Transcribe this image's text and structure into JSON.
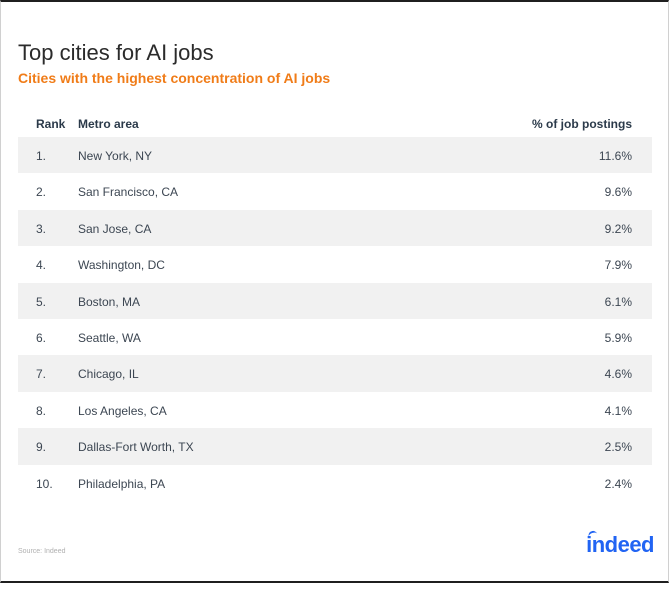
{
  "chart_data": {
    "type": "table",
    "title": "Top cities for AI jobs",
    "subtitle": "Cities with the highest concentration of AI jobs",
    "columns": [
      "Rank",
      "Metro area",
      "% of job postings"
    ],
    "rows": [
      {
        "rank": "1.",
        "metro": "New York, NY",
        "pct": "11.6%"
      },
      {
        "rank": "2.",
        "metro": "San Francisco, CA",
        "pct": "9.6%"
      },
      {
        "rank": "3.",
        "metro": "San Jose, CA",
        "pct": "9.2%"
      },
      {
        "rank": "4.",
        "metro": "Washington, DC",
        "pct": "7.9%"
      },
      {
        "rank": "5.",
        "metro": "Boston, MA",
        "pct": "6.1%"
      },
      {
        "rank": "6.",
        "metro": "Seattle, WA",
        "pct": "5.9%"
      },
      {
        "rank": "7.",
        "metro": "Chicago, IL",
        "pct": "4.6%"
      },
      {
        "rank": "8.",
        "metro": "Los Angeles, CA",
        "pct": "4.1%"
      },
      {
        "rank": "9.",
        "metro": "Dallas-Fort Worth, TX",
        "pct": "2.5%"
      },
      {
        "rank": "10.",
        "metro": "Philadelphia, PA",
        "pct": "2.4%"
      }
    ],
    "values": [
      11.6,
      9.6,
      9.2,
      7.9,
      6.1,
      5.9,
      4.6,
      4.1,
      2.5,
      2.4
    ],
    "source": "Source: Indeed"
  },
  "brand": {
    "logo_text": "indeed",
    "accent_color": "#f07c18",
    "logo_color": "#2164f3",
    "stripe_color": "#f1f1f1"
  }
}
